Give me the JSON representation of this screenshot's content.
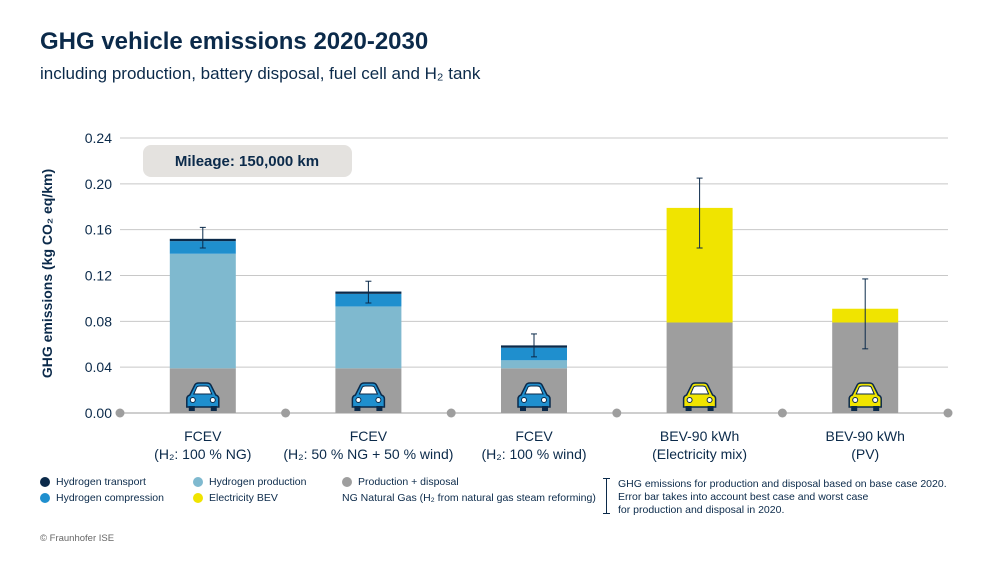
{
  "header": {
    "title": "GHG vehicle emissions 2020-2030",
    "subtitle": "including production, battery disposal, fuel cell and H₂ tank"
  },
  "mileage_badge": "Mileage: 150,000 km",
  "colors": {
    "hydrogen_transport": "#0b2a4a",
    "hydrogen_compression": "#1f8fce",
    "hydrogen_production": "#7fb9cf",
    "production_disposal": "#9e9e9e",
    "electricity_bev": "#f0e400",
    "badge_bg": "#e4e2df",
    "grid": "#c8c8c8"
  },
  "legend": {
    "hydrogen_transport": "Hydrogen transport",
    "hydrogen_compression": "Hydrogen compression",
    "hydrogen_production": "Hydrogen production",
    "electricity_bev": "Electricity BEV",
    "production_disposal": "Production + disposal",
    "ng_note": "NG Natural Gas (H₂ from natural gas steam reforming)"
  },
  "notes": {
    "line1": "GHG emissions for production and disposal based on base case 2020.",
    "line2": "Error bar takes into account best case and worst case",
    "line3": "for production and disposal in 2020."
  },
  "copyright": "© Fraunhofer ISE",
  "chart_data": {
    "type": "bar",
    "stacked": true,
    "ylabel": "GHG emissions (kg CO₂ eq/km)",
    "ylim": [
      0,
      0.24
    ],
    "yticks": [
      "0.00",
      "0.04",
      "0.08",
      "0.12",
      "0.16",
      "0.20",
      "0.24"
    ],
    "grid": true,
    "categories": [
      [
        "FCEV",
        "(H₂: 100 % NG)"
      ],
      [
        "FCEV",
        "(H₂: 50 % NG + 50 % wind)"
      ],
      [
        "FCEV",
        "(H₂: 100 % wind)"
      ],
      [
        "BEV-90 kWh",
        "(Electricity mix)"
      ],
      [
        "BEV-90 kWh",
        "(PV)"
      ]
    ],
    "vehicle_icon": [
      "car-icon-blue",
      "car-icon-blue",
      "car-icon-blue",
      "car-icon-yellow",
      "car-icon-yellow"
    ],
    "series": [
      {
        "name": "Production + disposal",
        "key": "production_disposal",
        "values": [
          0.039,
          0.039,
          0.039,
          0.079,
          0.079
        ]
      },
      {
        "name": "Hydrogen production",
        "key": "hydrogen_production",
        "values": [
          0.1,
          0.054,
          0.007,
          0,
          0
        ]
      },
      {
        "name": "Hydrogen compression",
        "key": "hydrogen_compression",
        "values": [
          0.011,
          0.011,
          0.011,
          0,
          0
        ]
      },
      {
        "name": "Hydrogen transport",
        "key": "hydrogen_transport",
        "values": [
          0.002,
          0.002,
          0.002,
          0,
          0
        ]
      },
      {
        "name": "Electricity BEV",
        "key": "electricity_bev",
        "values": [
          0,
          0,
          0,
          0.1,
          0.012
        ]
      }
    ],
    "error_bars": [
      {
        "low": 0.144,
        "high": 0.162
      },
      {
        "low": 0.096,
        "high": 0.115
      },
      {
        "low": 0.049,
        "high": 0.069
      },
      {
        "low": 0.144,
        "high": 0.205
      },
      {
        "low": 0.056,
        "high": 0.117
      }
    ]
  }
}
